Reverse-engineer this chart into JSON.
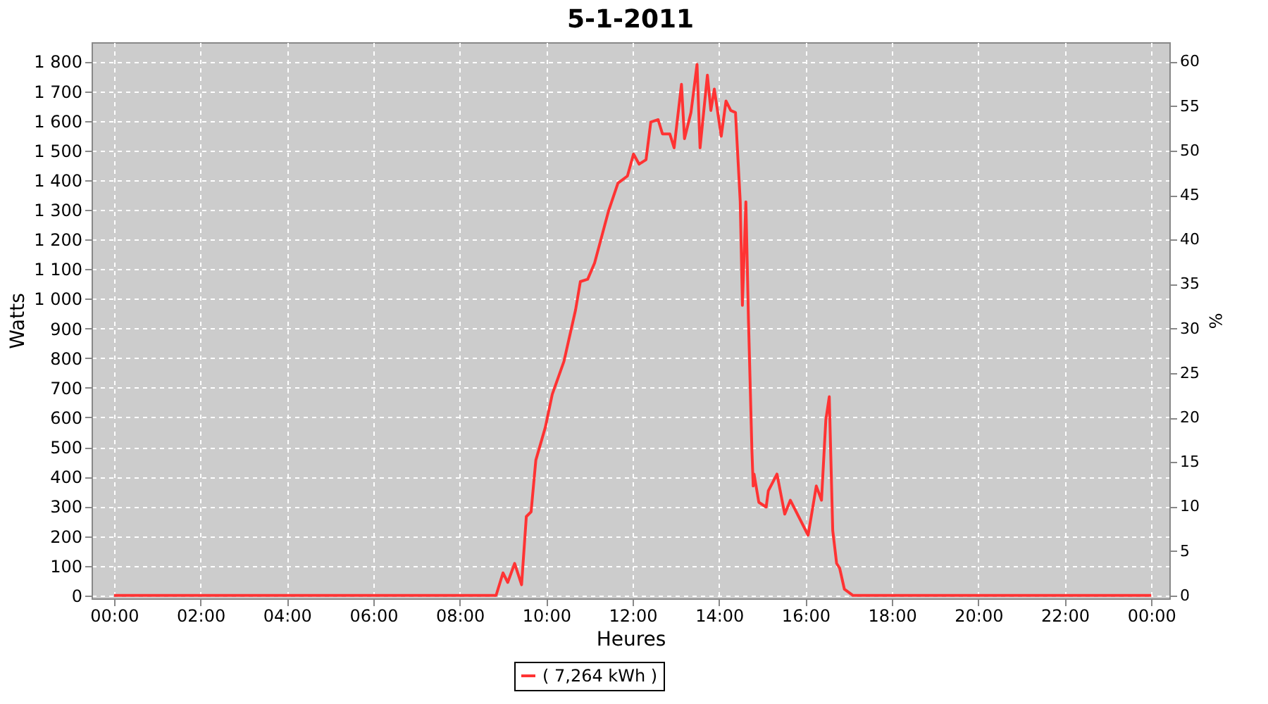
{
  "chart_data": {
    "type": "line",
    "title": "5-1-2011",
    "xlabel": "Heures",
    "ylabel": "Watts",
    "y2label": "%",
    "x": [
      0,
      8.84,
      9.0,
      9.11,
      9.27,
      9.43,
      9.54,
      9.65,
      9.76,
      9.98,
      10.14,
      10.41,
      10.68,
      10.79,
      10.96,
      11.12,
      11.44,
      11.66,
      11.88,
      12.02,
      12.15,
      12.31,
      12.42,
      12.59,
      12.69,
      12.86,
      12.96,
      13.13,
      13.2,
      13.35,
      13.49,
      13.56,
      13.73,
      13.81,
      13.89,
      14.05,
      14.16,
      14.27,
      14.38,
      14.49,
      14.54,
      14.62,
      14.68,
      14.76,
      14.79,
      14.81,
      14.92,
      15.09,
      15.14,
      15.34,
      15.52,
      15.65,
      16.06,
      16.25,
      16.37,
      16.47,
      16.55,
      16.63,
      16.72,
      16.79,
      16.9,
      17.1,
      24.0
    ],
    "series": [
      {
        "name": "( 7,264 kWh )",
        "color": "#ff3333",
        "values": [
          0,
          0,
          76,
          44,
          108,
          36,
          266,
          282,
          456,
          567,
          678,
          789,
          963,
          1058,
          1066,
          1121,
          1295,
          1390,
          1414,
          1488,
          1454,
          1469,
          1596,
          1604,
          1556,
          1556,
          1509,
          1723,
          1540,
          1628,
          1790,
          1509,
          1754,
          1635,
          1707,
          1548,
          1667,
          1635,
          1628,
          1327,
          978,
          1327,
          931,
          488,
          369,
          409,
          314,
          298,
          353,
          409,
          274,
          321,
          203,
          369,
          321,
          591,
          670,
          219,
          108,
          92,
          21,
          0,
          0
        ]
      }
    ],
    "xlim": [
      -0.52,
      24.42
    ],
    "xticks": [
      {
        "value": 0,
        "label": "00:00"
      },
      {
        "value": 2,
        "label": "02:00"
      },
      {
        "value": 4,
        "label": "04:00"
      },
      {
        "value": 6,
        "label": "06:00"
      },
      {
        "value": 8,
        "label": "08:00"
      },
      {
        "value": 10,
        "label": "10:00"
      },
      {
        "value": 12,
        "label": "12:00"
      },
      {
        "value": 14,
        "label": "14:00"
      },
      {
        "value": 16,
        "label": "16:00"
      },
      {
        "value": 18,
        "label": "18:00"
      },
      {
        "value": 20,
        "label": "20:00"
      },
      {
        "value": 22,
        "label": "22:00"
      },
      {
        "value": 24,
        "label": "00:00"
      }
    ],
    "ylim": [
      -10,
      1865
    ],
    "yticks": [
      0,
      100,
      200,
      300,
      400,
      500,
      600,
      700,
      800,
      900,
      {
        "value": 1000,
        "label": "1 000"
      },
      {
        "value": 1100,
        "label": "1 100"
      },
      {
        "value": 1200,
        "label": "1 200"
      },
      {
        "value": 1300,
        "label": "1 300"
      },
      {
        "value": 1400,
        "label": "1 400"
      },
      {
        "value": 1500,
        "label": "1 500"
      },
      {
        "value": 1600,
        "label": "1 600"
      },
      {
        "value": 1700,
        "label": "1 700"
      },
      {
        "value": 1800,
        "label": "1 800"
      }
    ],
    "y2lim": [
      -0.33,
      62.17
    ],
    "y2ticks": [
      0,
      5,
      10,
      15,
      20,
      25,
      30,
      35,
      40,
      45,
      50,
      55,
      60
    ],
    "grid": true,
    "legend": "bottom",
    "marker": "none",
    "line_style": "solid"
  }
}
